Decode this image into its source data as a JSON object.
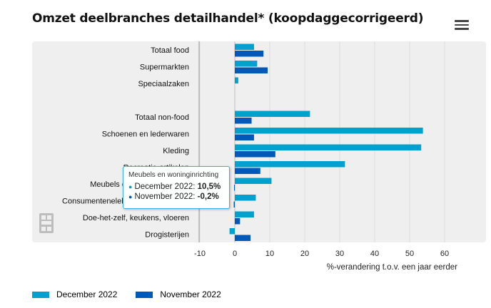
{
  "title": "Omzet deelbranches detailhandel* (koopdaggecorrigeerd)",
  "menu_icon": "hamburger-menu-icon",
  "logo_icon": "cbs-logo-icon",
  "colors": {
    "december": "#00a1cd",
    "november": "#0058b8",
    "plot_bg": "#efefef",
    "grid": "#dddddd"
  },
  "chart_data": {
    "type": "bar",
    "orientation": "horizontal",
    "title": "Omzet deelbranches detailhandel* (koopdaggecorrigeerd)",
    "xlabel": "%-verandering t.o.v. een jaar eerder",
    "xlim": [
      -10,
      60
    ],
    "xticks": [
      "-10",
      "0",
      "10",
      "20",
      "30",
      "40",
      "50",
      "60"
    ],
    "grid": true,
    "legend_position": "bottom-left",
    "categories": [
      "Totaal food",
      "Supermarkten",
      "Speciaalzaken",
      "",
      "Totaal non-food",
      "Schoenen en lederwaren",
      "Kleding",
      "Recreatie-artikelen",
      "Meubels en woninginrichting",
      "Consumentenelektronica en witgoed",
      "Doe-het-zelf, keukens, vloeren",
      "Drogisterijen"
    ],
    "series": [
      {
        "name": "December 2022",
        "values": [
          5.5,
          6.4,
          1.0,
          null,
          21.5,
          53.8,
          53.3,
          31.5,
          10.5,
          6.0,
          5.5,
          -1.5
        ]
      },
      {
        "name": "November 2022",
        "values": [
          8.2,
          9.4,
          null,
          null,
          4.8,
          5.5,
          11.6,
          7.3,
          -0.2,
          -0.3,
          1.5,
          4.5
        ]
      }
    ]
  },
  "legend": [
    {
      "label": "December 2022",
      "color": "#00a1cd"
    },
    {
      "label": "November 2022",
      "color": "#0058b8"
    }
  ],
  "tooltip": {
    "title": "Meubels en woninginrichting",
    "rows": [
      {
        "label": "December 2022: ",
        "value": "10,5%",
        "color": "#00a1cd"
      },
      {
        "label": "November 2022: ",
        "value": "-0,2%",
        "color": "#0058b8"
      }
    ]
  }
}
